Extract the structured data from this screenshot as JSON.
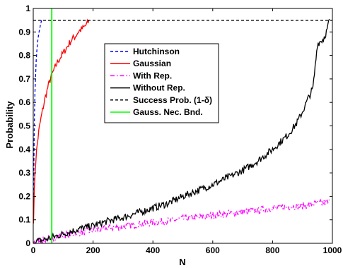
{
  "chart_data": {
    "type": "line",
    "xlabel": "N",
    "ylabel": "Probability",
    "xlim": [
      0,
      1000
    ],
    "ylim": [
      0,
      1
    ],
    "xticks": [
      0,
      200,
      400,
      600,
      800,
      1000
    ],
    "yticks": [
      0,
      0.1,
      0.2,
      0.3,
      0.4,
      0.5,
      0.6,
      0.7,
      0.8,
      0.9,
      1
    ],
    "grid": false,
    "legend_position": "top-center",
    "series": [
      {
        "name": "Hutchinson",
        "color": "#0000ff",
        "style": "dashed",
        "x": [
          1,
          2,
          3,
          4,
          6,
          8,
          10,
          12,
          15,
          18,
          21,
          24,
          27,
          30
        ],
        "y": [
          0.12,
          0.3,
          0.45,
          0.55,
          0.65,
          0.72,
          0.78,
          0.82,
          0.86,
          0.89,
          0.91,
          0.93,
          0.945,
          0.955
        ]
      },
      {
        "name": "Gaussian",
        "color": "#ff0000",
        "style": "solid",
        "x": [
          1,
          3,
          5,
          10,
          15,
          20,
          30,
          40,
          50,
          60,
          70,
          80,
          90,
          100,
          110,
          120,
          130,
          140,
          150,
          160,
          170,
          180,
          186
        ],
        "y": [
          0.1,
          0.2,
          0.28,
          0.38,
          0.44,
          0.49,
          0.56,
          0.62,
          0.67,
          0.71,
          0.74,
          0.77,
          0.79,
          0.81,
          0.83,
          0.85,
          0.87,
          0.88,
          0.9,
          0.91,
          0.92,
          0.935,
          0.945
        ]
      },
      {
        "name": "With Rep.",
        "color": "#ff00ff",
        "style": "dashdot",
        "x": [
          1,
          50,
          100,
          150,
          200,
          250,
          300,
          350,
          400,
          450,
          500,
          550,
          600,
          650,
          700,
          750,
          800,
          850,
          900,
          950,
          990
        ],
        "y": [
          0.005,
          0.02,
          0.035,
          0.045,
          0.055,
          0.065,
          0.07,
          0.08,
          0.09,
          0.095,
          0.105,
          0.11,
          0.12,
          0.125,
          0.135,
          0.14,
          0.15,
          0.155,
          0.16,
          0.17,
          0.175
        ]
      },
      {
        "name": "Without Rep.",
        "color": "#000000",
        "style": "solid",
        "x": [
          1,
          50,
          100,
          150,
          200,
          250,
          300,
          350,
          400,
          450,
          500,
          550,
          600,
          650,
          700,
          750,
          800,
          850,
          880,
          900,
          920,
          935,
          940,
          950,
          960,
          970,
          980,
          990
        ],
        "y": [
          0.005,
          0.02,
          0.04,
          0.06,
          0.075,
          0.095,
          0.11,
          0.13,
          0.15,
          0.17,
          0.2,
          0.225,
          0.25,
          0.28,
          0.31,
          0.35,
          0.4,
          0.46,
          0.51,
          0.56,
          0.62,
          0.66,
          0.72,
          0.85,
          0.86,
          0.87,
          0.9,
          0.95
        ]
      },
      {
        "name": "Success Prob. (1-δ)",
        "color": "#000000",
        "style": "dashed",
        "x": [
          0,
          1000
        ],
        "y": [
          0.95,
          0.95
        ]
      },
      {
        "name": "Gauss. Nec. Bnd.",
        "color": "#00ff00",
        "style": "solid",
        "x": [
          62,
          62
        ],
        "y": [
          0,
          1
        ]
      }
    ]
  }
}
